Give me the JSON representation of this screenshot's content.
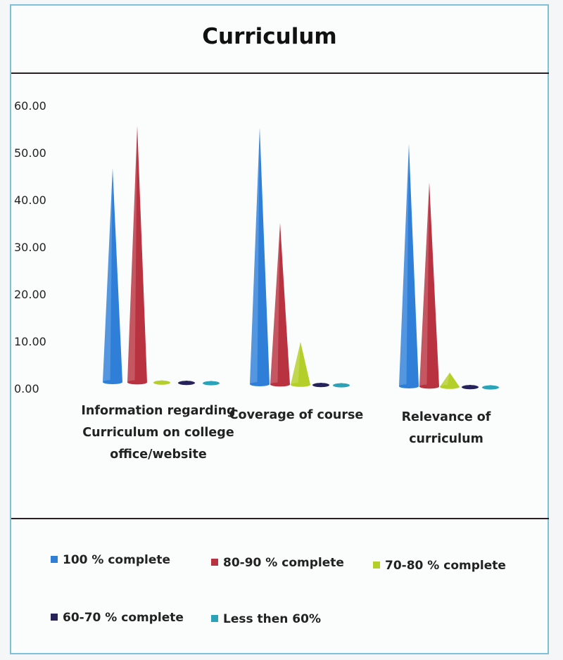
{
  "chart_data": {
    "type": "bar",
    "style": "3d-cone",
    "title": "Curriculum",
    "xlabel": "",
    "ylabel": "",
    "ylim": [
      0,
      60
    ],
    "yticks": [
      "60.00",
      "50.00",
      "40.00",
      "30.00",
      "20.00",
      "10.00",
      "0.00"
    ],
    "categories": [
      "Information regarding Curriculum on college office/website",
      "Coverage of course",
      "Relevance of curriculum"
    ],
    "series": [
      {
        "name": "100 % complete",
        "color": "#2f7fd8",
        "values": [
          45,
          54,
          51
        ]
      },
      {
        "name": "80-90 % complete",
        "color": "#b8323f",
        "values": [
          54,
          34,
          43
        ]
      },
      {
        "name": "70-80 % complete",
        "color": "#b5cf2a",
        "values": [
          0.5,
          9,
          3
        ]
      },
      {
        "name": "60-70 % complete",
        "color": "#25235a",
        "values": [
          0.5,
          0.5,
          0.5
        ]
      },
      {
        "name": "Less then 60%",
        "color": "#2aa3b8",
        "values": [
          0.5,
          0.5,
          0.5
        ]
      }
    ],
    "grid": false,
    "legend": "bottom"
  }
}
